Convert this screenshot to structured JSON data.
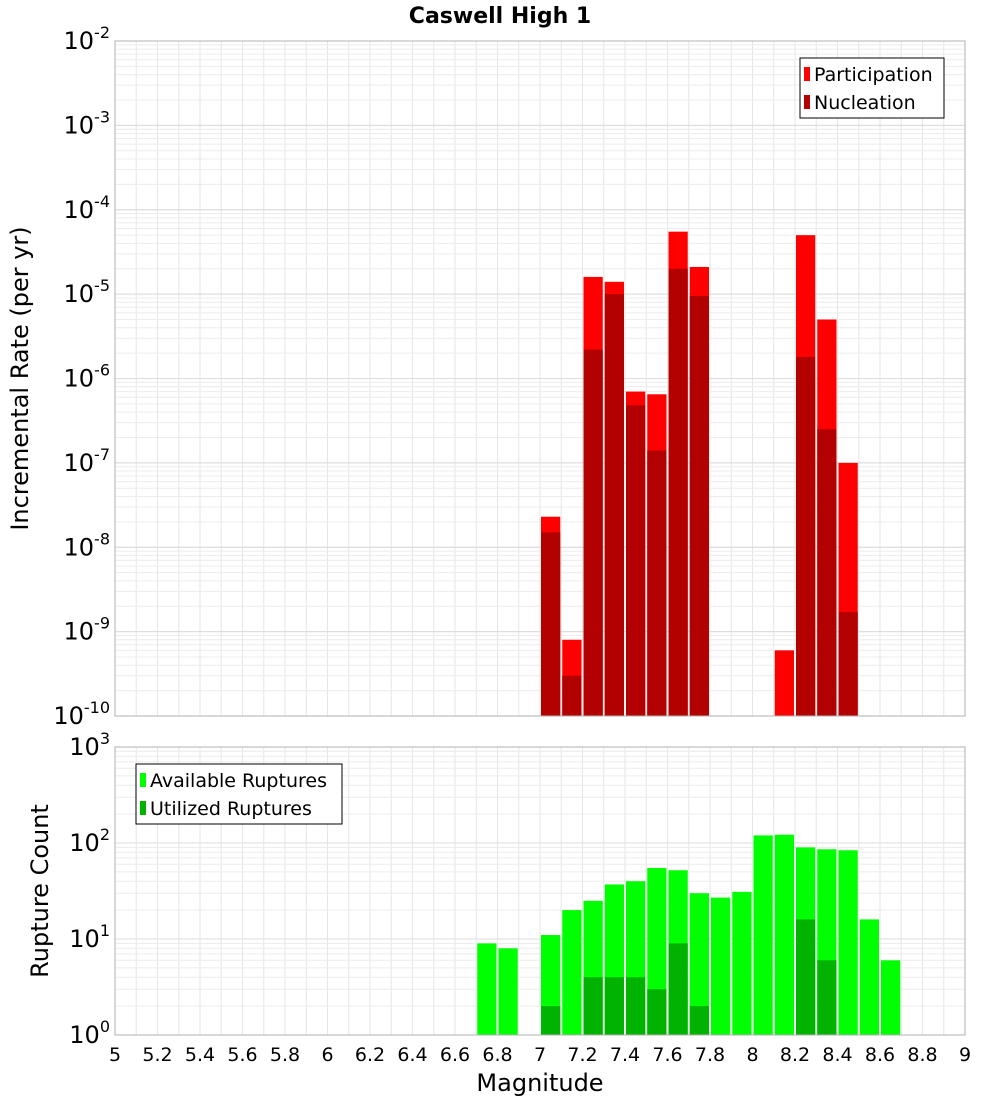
{
  "chart_data": {
    "type": "bar",
    "title": "Caswell High 1",
    "xlabel": "Magnitude",
    "xlim": [
      5,
      9
    ],
    "x_ticks": [
      "5",
      "5.2",
      "5.4",
      "5.6",
      "5.8",
      "6",
      "6.2",
      "6.4",
      "6.6",
      "6.8",
      "7",
      "7.2",
      "7.4",
      "7.6",
      "7.8",
      "8",
      "8.2",
      "8.4",
      "8.6",
      "8.8",
      "9"
    ],
    "grid": true,
    "panels": [
      {
        "ylabel": "Incremental Rate (per yr)",
        "yscale": "log",
        "ylim_exp": [
          -10,
          -2
        ],
        "legend_position": "top-right",
        "series": [
          {
            "name": "Participation",
            "color": "#ff0000",
            "x": [
              7.05,
              7.15,
              7.25,
              7.35,
              7.45,
              7.55,
              7.65,
              7.75,
              8.15,
              8.25,
              8.35,
              8.45
            ],
            "values": [
              2.3e-08,
              8e-10,
              1.6e-05,
              1.4e-05,
              7e-07,
              6.5e-07,
              5.5e-05,
              2.1e-05,
              6e-10,
              5e-05,
              5e-06,
              1e-07
            ]
          },
          {
            "name": "Nucleation",
            "color": "#b30000",
            "x": [
              7.05,
              7.15,
              7.25,
              7.35,
              7.45,
              7.55,
              7.65,
              7.75,
              8.25,
              8.35,
              8.45
            ],
            "values": [
              1.5e-08,
              3e-10,
              2.2e-06,
              1e-05,
              4.8e-07,
              1.4e-07,
              2e-05,
              9.5e-06,
              1.8e-06,
              2.5e-07,
              1.7e-09
            ]
          }
        ]
      },
      {
        "ylabel": "Rupture Count",
        "yscale": "log",
        "ylim_exp": [
          0,
          3
        ],
        "legend_position": "top-left",
        "series": [
          {
            "name": "Available Ruptures",
            "color": "#00ff00",
            "x": [
              6.75,
              6.85,
              7.05,
              7.15,
              7.25,
              7.35,
              7.45,
              7.55,
              7.65,
              7.75,
              7.85,
              7.95,
              8.05,
              8.15,
              8.25,
              8.35,
              8.45,
              8.55,
              8.65
            ],
            "values": [
              9,
              8,
              11,
              20,
              25,
              37,
              40,
              55,
              52,
              30,
              27,
              31,
              120,
              122,
              90,
              86,
              84,
              16,
              6
            ]
          },
          {
            "name": "Utilized Ruptures",
            "color": "#00b300",
            "x": [
              7.05,
              7.15,
              7.25,
              7.35,
              7.45,
              7.55,
              7.65,
              7.75,
              8.15,
              8.25,
              8.35,
              8.45
            ],
            "values": [
              2,
              1,
              4,
              4,
              4,
              3,
              9,
              2,
              1,
              16,
              6,
              1
            ]
          }
        ]
      }
    ]
  }
}
